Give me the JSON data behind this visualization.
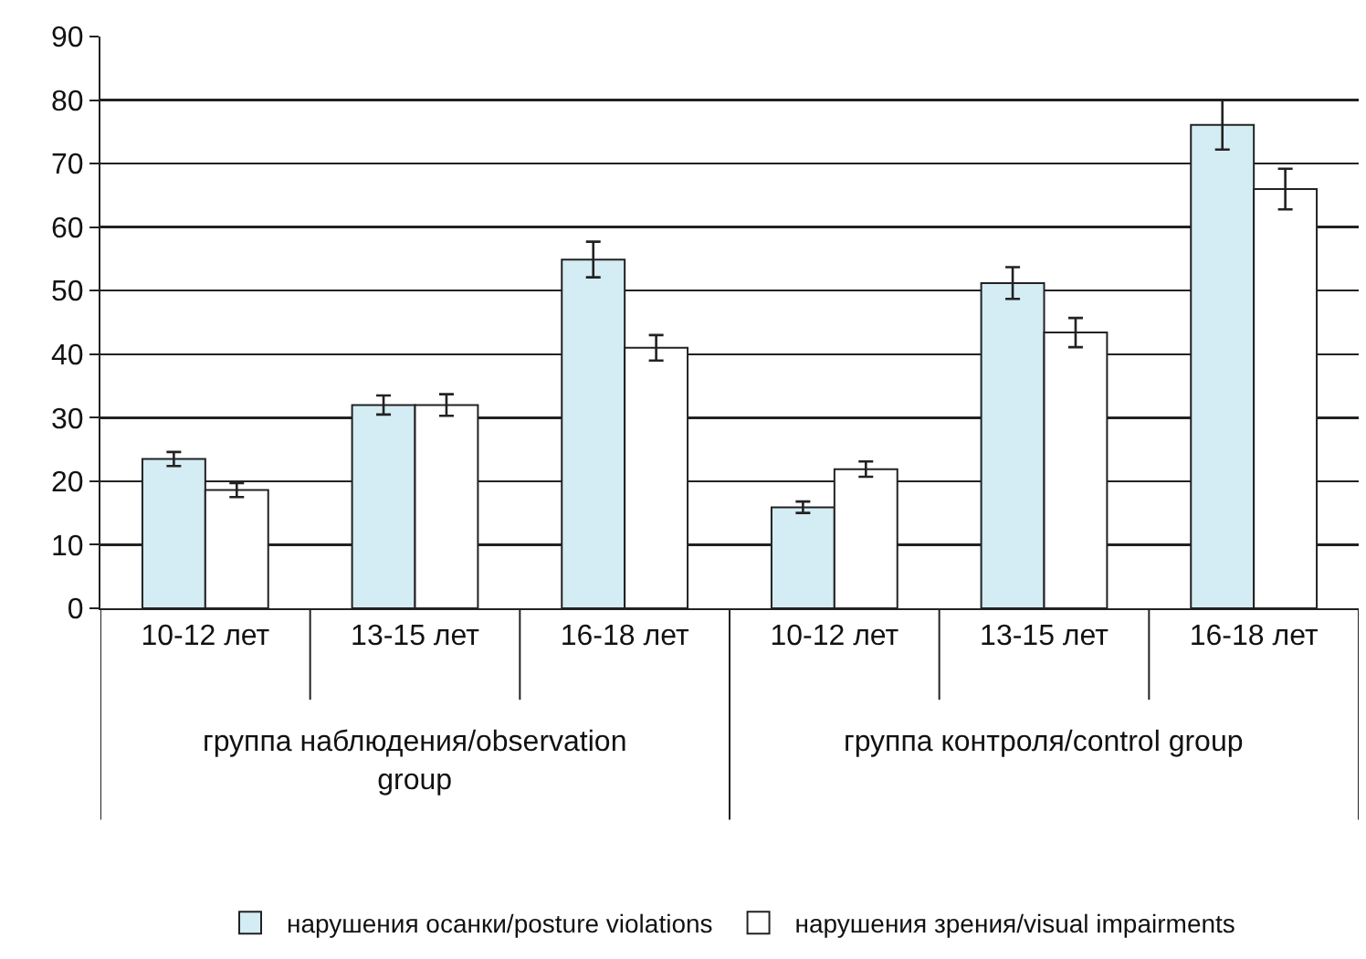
{
  "chart_data": {
    "type": "bar",
    "categories": [
      "10-12 лет",
      "13-15 лет",
      "16-18 лет",
      "10-12 лет",
      "13-15 лет",
      "16-18 лет"
    ],
    "series": [
      {
        "name": "нарушения осанки/posture violations",
        "color": "#d4ecf3",
        "values": [
          23.5,
          32.0,
          54.9,
          15.9,
          51.2,
          76.1
        ],
        "errors": [
          1.1,
          1.5,
          2.8,
          0.9,
          2.5,
          3.9
        ]
      },
      {
        "name": "нарушения зрения/visual impairments",
        "color": "#ffffff",
        "values": [
          18.6,
          32.0,
          41.0,
          21.9,
          43.4,
          66.0
        ],
        "errors": [
          1.1,
          1.7,
          2.0,
          1.2,
          2.3,
          3.2
        ]
      }
    ],
    "annotations": [
      "группа наблюдения/observation group",
      "группа контроля/control group"
    ],
    "ylim": [
      0,
      90
    ],
    "yticks": [
      0,
      10,
      20,
      30,
      40,
      50,
      60,
      70,
      80,
      90
    ],
    "grid": "y",
    "legend": "bottom"
  }
}
